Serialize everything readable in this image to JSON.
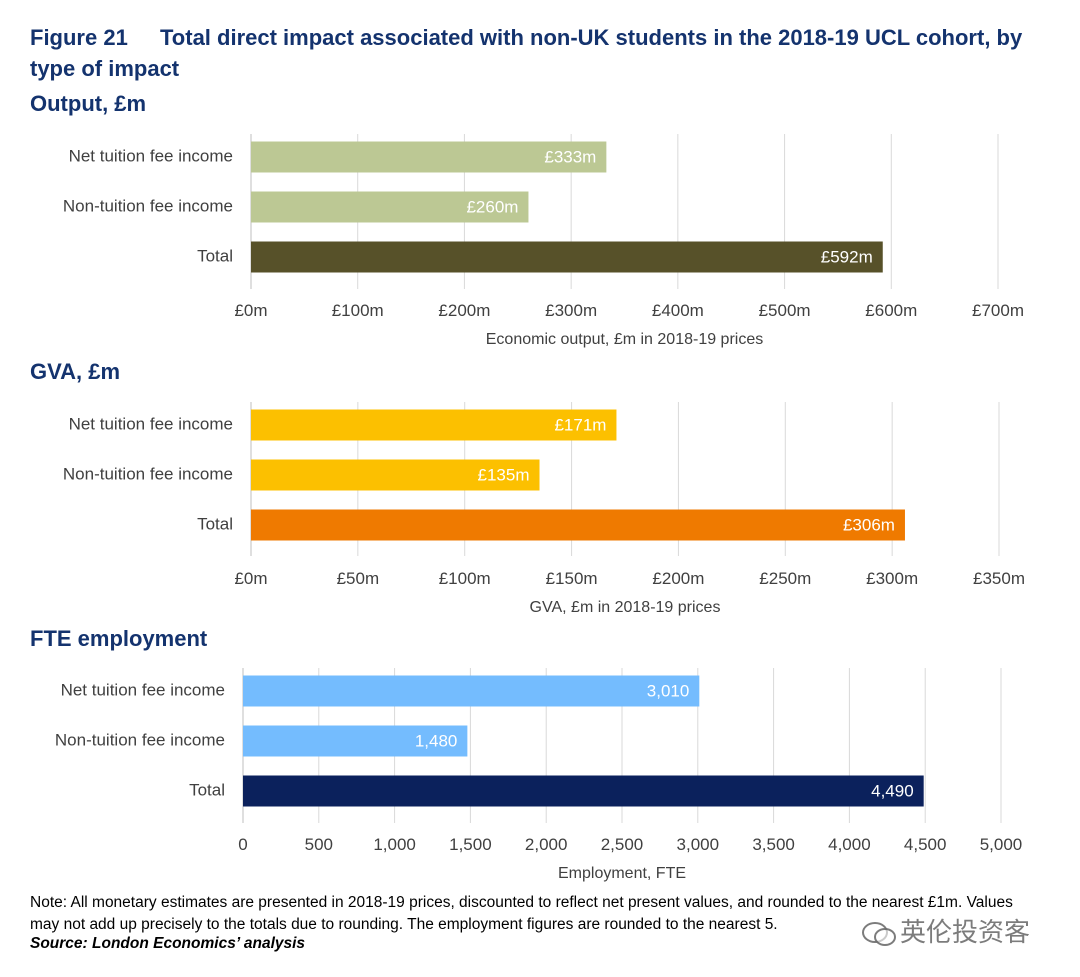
{
  "figure": {
    "number": "Figure 21",
    "title": "Total direct impact associated with non-UK students in the 2018-19 UCL cohort, by type of impact"
  },
  "sections": [
    {
      "title": "Output, £m"
    },
    {
      "title": "GVA, £m"
    },
    {
      "title": "FTE employment"
    }
  ],
  "chart_data": [
    {
      "type": "bar",
      "orientation": "horizontal",
      "categories": [
        "Net tuition fee income",
        "Non-tuition fee income",
        "Total"
      ],
      "values": [
        333,
        260,
        592
      ],
      "value_labels": [
        "£333m",
        "£260m",
        "£592m"
      ],
      "colors": [
        "#bcc894",
        "#bcc894",
        "#575129"
      ],
      "xlim": [
        0,
        700
      ],
      "xticks": [
        0,
        100,
        200,
        300,
        400,
        500,
        600,
        700
      ],
      "xtick_labels": [
        "£0m",
        "£100m",
        "£200m",
        "£300m",
        "£400m",
        "£500m",
        "£600m",
        "£700m"
      ],
      "xlabel": "Economic output, £m in 2018-19 prices",
      "grid": true
    },
    {
      "type": "bar",
      "orientation": "horizontal",
      "categories": [
        "Net tuition fee income",
        "Non-tuition fee income",
        "Total"
      ],
      "values": [
        171,
        135,
        306
      ],
      "value_labels": [
        "£171m",
        "£135m",
        "£306m"
      ],
      "colors": [
        "#fcc000",
        "#fcc000",
        "#ef7a00"
      ],
      "xlim": [
        0,
        350
      ],
      "xticks": [
        0,
        50,
        100,
        150,
        200,
        250,
        300,
        350
      ],
      "xtick_labels": [
        "£0m",
        "£50m",
        "£100m",
        "£150m",
        "£200m",
        "£250m",
        "£300m",
        "£350m"
      ],
      "xlabel": "GVA, £m in 2018-19 prices",
      "grid": true
    },
    {
      "type": "bar",
      "orientation": "horizontal",
      "categories": [
        "Net tuition fee income",
        "Non-tuition fee income",
        "Total"
      ],
      "values": [
        3010,
        1480,
        4490
      ],
      "value_labels": [
        "3,010",
        "1,480",
        "4,490"
      ],
      "colors": [
        "#74bcfe",
        "#74bcfe",
        "#0b215c"
      ],
      "xlim": [
        0,
        5000
      ],
      "xticks": [
        0,
        500,
        1000,
        1500,
        2000,
        2500,
        3000,
        3500,
        4000,
        4500,
        5000
      ],
      "xtick_labels": [
        "0",
        "500",
        "1,000",
        "1,500",
        "2,000",
        "2,500",
        "3,000",
        "3,500",
        "4,000",
        "4,500",
        "5,000"
      ],
      "xlabel": "Employment, FTE",
      "grid": true
    }
  ],
  "note": "Note: All monetary estimates are presented in 2018-19 prices, discounted to reflect net present values, and rounded to the nearest £1m. Values may not add up precisely to the totals due to rounding. The employment figures are rounded to the nearest 5.",
  "source": "Source: London Economics’ analysis",
  "watermark": "英伦投资客"
}
